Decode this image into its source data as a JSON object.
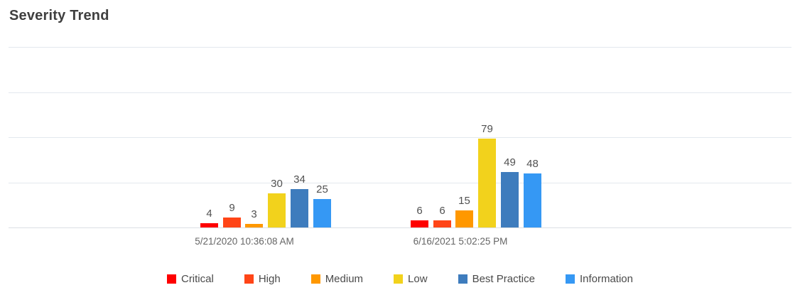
{
  "title": "Severity Trend",
  "colors": {
    "critical": "#fe0000",
    "high": "#ff4517",
    "medium": "#ff9800",
    "low": "#f2d21c",
    "best_practice": "#3e7cbd",
    "information": "#3598f4",
    "gridline": "#e3e8ee",
    "axis_line": "#dbdfe4",
    "title_text": "#3f3f3f",
    "value_label_text": "#515151",
    "category_label_text": "#656565",
    "legend_text": "#4a4a4a",
    "background": "#ffffff"
  },
  "chart_data": {
    "type": "bar",
    "title": "Severity Trend",
    "categories": [
      "5/21/2020 10:36:08 AM",
      "6/16/2021 5:02:25 PM"
    ],
    "series": [
      {
        "name": "Critical",
        "color": "#fe0000",
        "values": [
          4,
          6
        ]
      },
      {
        "name": "High",
        "color": "#ff4517",
        "values": [
          9,
          6
        ]
      },
      {
        "name": "Medium",
        "color": "#ff9800",
        "values": [
          3,
          15
        ]
      },
      {
        "name": "Low",
        "color": "#f2d21c",
        "values": [
          30,
          79
        ]
      },
      {
        "name": "Best Practice",
        "color": "#3e7cbd",
        "values": [
          34,
          49
        ]
      },
      {
        "name": "Information",
        "color": "#3598f4",
        "values": [
          25,
          48
        ]
      }
    ],
    "xlabel": "",
    "ylabel": "",
    "ylim": [
      0,
      160
    ],
    "gridlines": [
      40,
      80,
      120,
      160
    ],
    "grid": "horizontal",
    "y_axis_tick_labels_visible": false,
    "value_labels_visible": true,
    "legend_position": "bottom"
  }
}
